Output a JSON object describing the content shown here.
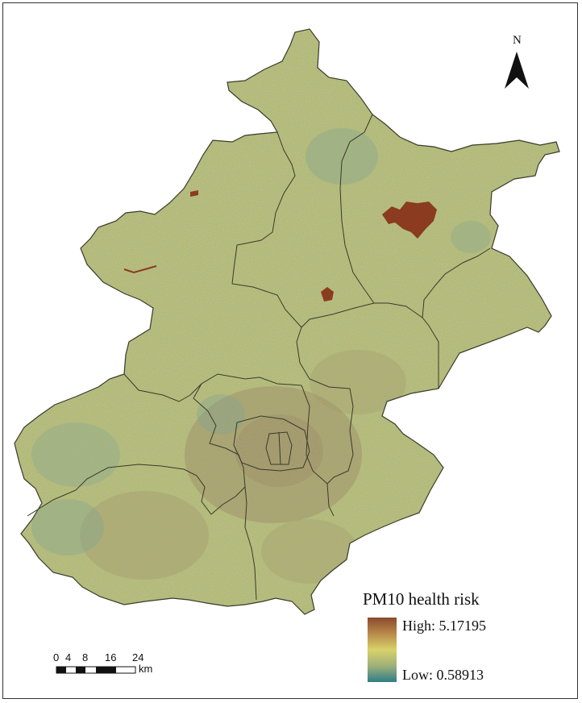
{
  "legend": {
    "title": "PM10 health risk",
    "high_label": "High: 5.17195",
    "low_label": "Low: 0.58913",
    "high_value": 5.17195,
    "low_value": 0.58913,
    "colors": {
      "high": "#8b4a2b",
      "mid_high": "#b88a4a",
      "mid": "#d8d26a",
      "mid_low": "#9fb07a",
      "low": "#2f7e86"
    }
  },
  "north_arrow": {
    "label": "N"
  },
  "scale_bar": {
    "ticks": [
      "0",
      "4",
      "8",
      "16",
      "24"
    ],
    "unit": "km"
  },
  "map_colors": {
    "base": "#c9c466",
    "boundary": "#3a3a2a",
    "hotspot": "#8b3b1f",
    "urban": "#a8834a",
    "low_patch": "#6d9d8a"
  }
}
